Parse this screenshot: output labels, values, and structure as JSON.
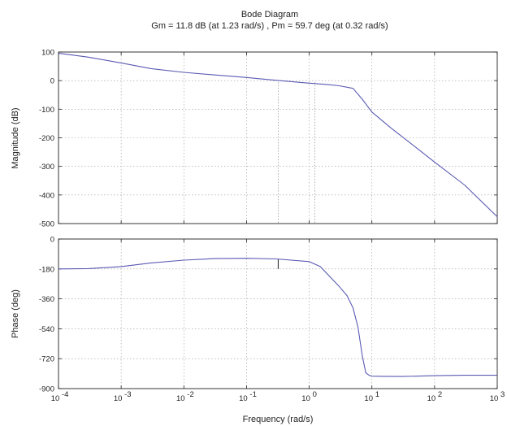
{
  "figure": {
    "title": "Bode Diagram",
    "subtitle": "Gm = 11.8 dB (at 1.23 rad/s) ,  Pm = 59.7 deg (at 0.32 rad/s)"
  },
  "chart_data": [
    {
      "type": "line",
      "panel": "magnitude",
      "title": "Bode Diagram",
      "subtitle": "Gm = 11.8 dB (at 1.23 rad/s) ,  Pm = 59.7 deg (at 0.32 rad/s)",
      "xlabel": "",
      "ylabel": "Magnitude (dB)",
      "xscale": "log",
      "xlim": [
        0.0001,
        1000
      ],
      "ylim": [
        -500,
        100
      ],
      "yticks": [
        100,
        0,
        -100,
        -200,
        -300,
        -400,
        -500
      ],
      "ytick_labels": [
        "100",
        "0",
        "-100",
        "-200",
        "-300",
        "-400",
        "-500"
      ],
      "grid": true,
      "color": "#5a5ab4",
      "series": [
        {
          "x": [
            0.0001,
            0.0003,
            0.001,
            0.003,
            0.01,
            0.03,
            0.1,
            0.3,
            1,
            2,
            3,
            5,
            7,
            10,
            20,
            50,
            100,
            300,
            1000
          ],
          "y": [
            96,
            82,
            62,
            42,
            29,
            20,
            11,
            1,
            -9,
            -14,
            -18,
            -27,
            -65,
            -110,
            -165,
            -233,
            -285,
            -365,
            -476
          ]
        }
      ],
      "annotations": [
        {
          "kind": "gain-margin-line",
          "x": 1.23
        },
        {
          "kind": "crossover-line",
          "x": 0.32
        }
      ]
    },
    {
      "type": "line",
      "panel": "phase",
      "xlabel": "Frequency  (rad/s)",
      "ylabel": "Phase (deg)",
      "xscale": "log",
      "xlim": [
        0.0001,
        1000
      ],
      "ylim": [
        -900,
        0
      ],
      "xticks": [
        0.0001,
        0.001,
        0.01,
        0.1,
        1,
        10,
        100,
        1000
      ],
      "xtick_base": [
        "10",
        "10",
        "10",
        "10",
        "10",
        "10",
        "10",
        "10"
      ],
      "xtick_exp": [
        "-4",
        "-3",
        "-2",
        "-1",
        "0",
        "1",
        "2",
        "3"
      ],
      "yticks": [
        0,
        -180,
        -360,
        -540,
        -720,
        -900
      ],
      "ytick_labels": [
        "0",
        "-180",
        "-360",
        "-540",
        "-720",
        "-900"
      ],
      "grid": true,
      "color": "#5a5ab4",
      "series": [
        {
          "x": [
            0.0001,
            0.0003,
            0.001,
            0.003,
            0.01,
            0.03,
            0.1,
            0.3,
            1,
            1.5,
            2,
            3,
            4,
            5,
            6,
            7,
            8,
            9,
            10,
            15,
            30,
            100,
            300,
            1000
          ],
          "y": [
            -180,
            -178,
            -166,
            -144,
            -127,
            -118,
            -116,
            -120,
            -136,
            -166,
            -215,
            -285,
            -340,
            -415,
            -530,
            -700,
            -805,
            -820,
            -825,
            -826,
            -827,
            -822,
            -820,
            -820
          ]
        }
      ],
      "annotations": [
        {
          "kind": "phase-margin-marker",
          "x": 0.32,
          "y_from": -120.3,
          "y_to": -180
        }
      ]
    }
  ]
}
